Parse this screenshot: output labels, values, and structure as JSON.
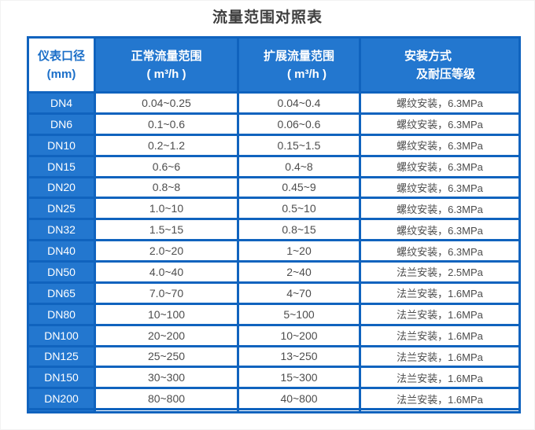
{
  "title": "流量范围对照表",
  "colors": {
    "cell_fill_blue": "#2377cf",
    "grid_border_blue": "#1063be",
    "corner_header_text_blue": "#1a6ec8",
    "body_text_gray": "#4d4d4d"
  },
  "table": {
    "headers": {
      "diameter": {
        "line1": "仪表口径",
        "line2": "(mm)"
      },
      "normal_range": {
        "line1": "正常流量范围",
        "line2": "( m³/h )"
      },
      "extended_range": {
        "line1": "扩展流量范围",
        "line2": "( m³/h )"
      },
      "installation": {
        "line1": "安装方式",
        "line2": "及耐压等级"
      }
    },
    "rows": [
      {
        "dn": "DN4",
        "normal": "0.04~0.25",
        "extended": "0.04~0.4",
        "install": "螺纹安装，6.3MPa"
      },
      {
        "dn": "DN6",
        "normal": "0.1~0.6",
        "extended": "0.06~0.6",
        "install": "螺纹安装，6.3MPa"
      },
      {
        "dn": "DN10",
        "normal": "0.2~1.2",
        "extended": "0.15~1.5",
        "install": "螺纹安装，6.3MPa"
      },
      {
        "dn": "DN15",
        "normal": "0.6~6",
        "extended": "0.4~8",
        "install": "螺纹安装，6.3MPa"
      },
      {
        "dn": "DN20",
        "normal": "0.8~8",
        "extended": "0.45~9",
        "install": "螺纹安装，6.3MPa"
      },
      {
        "dn": "DN25",
        "normal": "1.0~10",
        "extended": "0.5~10",
        "install": "螺纹安装，6.3MPa"
      },
      {
        "dn": "DN32",
        "normal": "1.5~15",
        "extended": "0.8~15",
        "install": "螺纹安装，6.3MPa"
      },
      {
        "dn": "DN40",
        "normal": "2.0~20",
        "extended": "1~20",
        "install": "螺纹安装，6.3MPa"
      },
      {
        "dn": "DN50",
        "normal": "4.0~40",
        "extended": "2~40",
        "install": "法兰安装，2.5MPa"
      },
      {
        "dn": "DN65",
        "normal": "7.0~70",
        "extended": "4~70",
        "install": "法兰安装，1.6MPa"
      },
      {
        "dn": "DN80",
        "normal": "10~100",
        "extended": "5~100",
        "install": "法兰安装，1.6MPa"
      },
      {
        "dn": "DN100",
        "normal": "20~200",
        "extended": "10~200",
        "install": "法兰安装，1.6MPa"
      },
      {
        "dn": "DN125",
        "normal": "25~250",
        "extended": "13~250",
        "install": "法兰安装，1.6MPa"
      },
      {
        "dn": "DN150",
        "normal": "30~300",
        "extended": "15~300",
        "install": "法兰安装，1.6MPa"
      },
      {
        "dn": "DN200",
        "normal": "80~800",
        "extended": "40~800",
        "install": "法兰安装，1.6MPa"
      }
    ]
  }
}
